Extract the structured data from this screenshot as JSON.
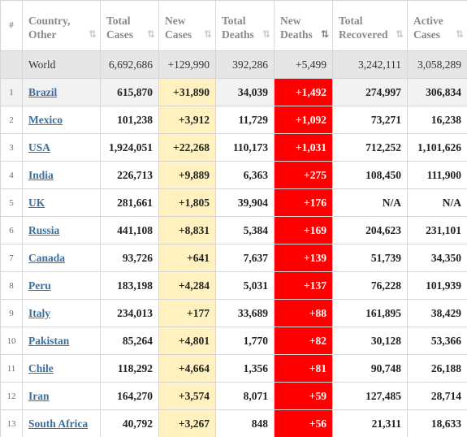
{
  "columns": [
    {
      "label": "#"
    },
    {
      "line1": "Country,",
      "line2": "Other",
      "sort": "⇅"
    },
    {
      "line1": "Total",
      "line2": "Cases",
      "sort": "⇅"
    },
    {
      "line1": "New",
      "line2": "Cases",
      "sort": "⇅"
    },
    {
      "line1": "Total",
      "line2": "Deaths",
      "sort": "⇅"
    },
    {
      "line1": "New",
      "line2": "Deaths",
      "sort": "⇅"
    },
    {
      "line1": "Total",
      "line2": "Recovered",
      "sort": "⇅"
    },
    {
      "line1": "Active",
      "line2": "Cases",
      "sort": "⇅"
    }
  ],
  "world": {
    "country": "World",
    "total_cases": "6,692,686",
    "new_cases": "+129,990",
    "total_deaths": "392,286",
    "new_deaths": "+5,499",
    "total_recovered": "3,242,111",
    "active_cases": "3,058,289"
  },
  "rows": [
    {
      "idx": "1",
      "country": "Brazil",
      "total_cases": "615,870",
      "new_cases": "+31,890",
      "total_deaths": "34,039",
      "new_deaths": "+1,492",
      "total_recovered": "274,997",
      "active_cases": "306,834"
    },
    {
      "idx": "2",
      "country": "Mexico",
      "total_cases": "101,238",
      "new_cases": "+3,912",
      "total_deaths": "11,729",
      "new_deaths": "+1,092",
      "total_recovered": "73,271",
      "active_cases": "16,238"
    },
    {
      "idx": "3",
      "country": "USA",
      "total_cases": "1,924,051",
      "new_cases": "+22,268",
      "total_deaths": "110,173",
      "new_deaths": "+1,031",
      "total_recovered": "712,252",
      "active_cases": "1,101,626"
    },
    {
      "idx": "4",
      "country": "India",
      "total_cases": "226,713",
      "new_cases": "+9,889",
      "total_deaths": "6,363",
      "new_deaths": "+275",
      "total_recovered": "108,450",
      "active_cases": "111,900"
    },
    {
      "idx": "5",
      "country": "UK",
      "total_cases": "281,661",
      "new_cases": "+1,805",
      "total_deaths": "39,904",
      "new_deaths": "+176",
      "total_recovered": "N/A",
      "active_cases": "N/A"
    },
    {
      "idx": "6",
      "country": "Russia",
      "total_cases": "441,108",
      "new_cases": "+8,831",
      "total_deaths": "5,384",
      "new_deaths": "+169",
      "total_recovered": "204,623",
      "active_cases": "231,101"
    },
    {
      "idx": "7",
      "country": "Canada",
      "total_cases": "93,726",
      "new_cases": "+641",
      "total_deaths": "7,637",
      "new_deaths": "+139",
      "total_recovered": "51,739",
      "active_cases": "34,350"
    },
    {
      "idx": "8",
      "country": "Peru",
      "total_cases": "183,198",
      "new_cases": "+4,284",
      "total_deaths": "5,031",
      "new_deaths": "+137",
      "total_recovered": "76,228",
      "active_cases": "101,939"
    },
    {
      "idx": "9",
      "country": "Italy",
      "total_cases": "234,013",
      "new_cases": "+177",
      "total_deaths": "33,689",
      "new_deaths": "+88",
      "total_recovered": "161,895",
      "active_cases": "38,429"
    },
    {
      "idx": "10",
      "country": "Pakistan",
      "total_cases": "85,264",
      "new_cases": "+4,801",
      "total_deaths": "1,770",
      "new_deaths": "+82",
      "total_recovered": "30,128",
      "active_cases": "53,366"
    },
    {
      "idx": "11",
      "country": "Chile",
      "total_cases": "118,292",
      "new_cases": "+4,664",
      "total_deaths": "1,356",
      "new_deaths": "+81",
      "total_recovered": "90,748",
      "active_cases": "26,188"
    },
    {
      "idx": "12",
      "country": "Iran",
      "total_cases": "164,270",
      "new_cases": "+3,574",
      "total_deaths": "8,071",
      "new_deaths": "+59",
      "total_recovered": "127,485",
      "active_cases": "28,714"
    },
    {
      "idx": "13",
      "country": "South Africa",
      "total_cases": "40,792",
      "new_cases": "+3,267",
      "total_deaths": "848",
      "new_deaths": "+56",
      "total_recovered": "21,311",
      "active_cases": "18,633"
    }
  ],
  "colors": {
    "new_cases_bg": "#fff2c0",
    "new_deaths_bg": "#ff0000",
    "world_bg": "#e6e6e6",
    "link": "#3a6f9f",
    "highlight_row": "#f2f2f2"
  },
  "sorted_column": "New Deaths",
  "highlighted_row": "Brazil"
}
